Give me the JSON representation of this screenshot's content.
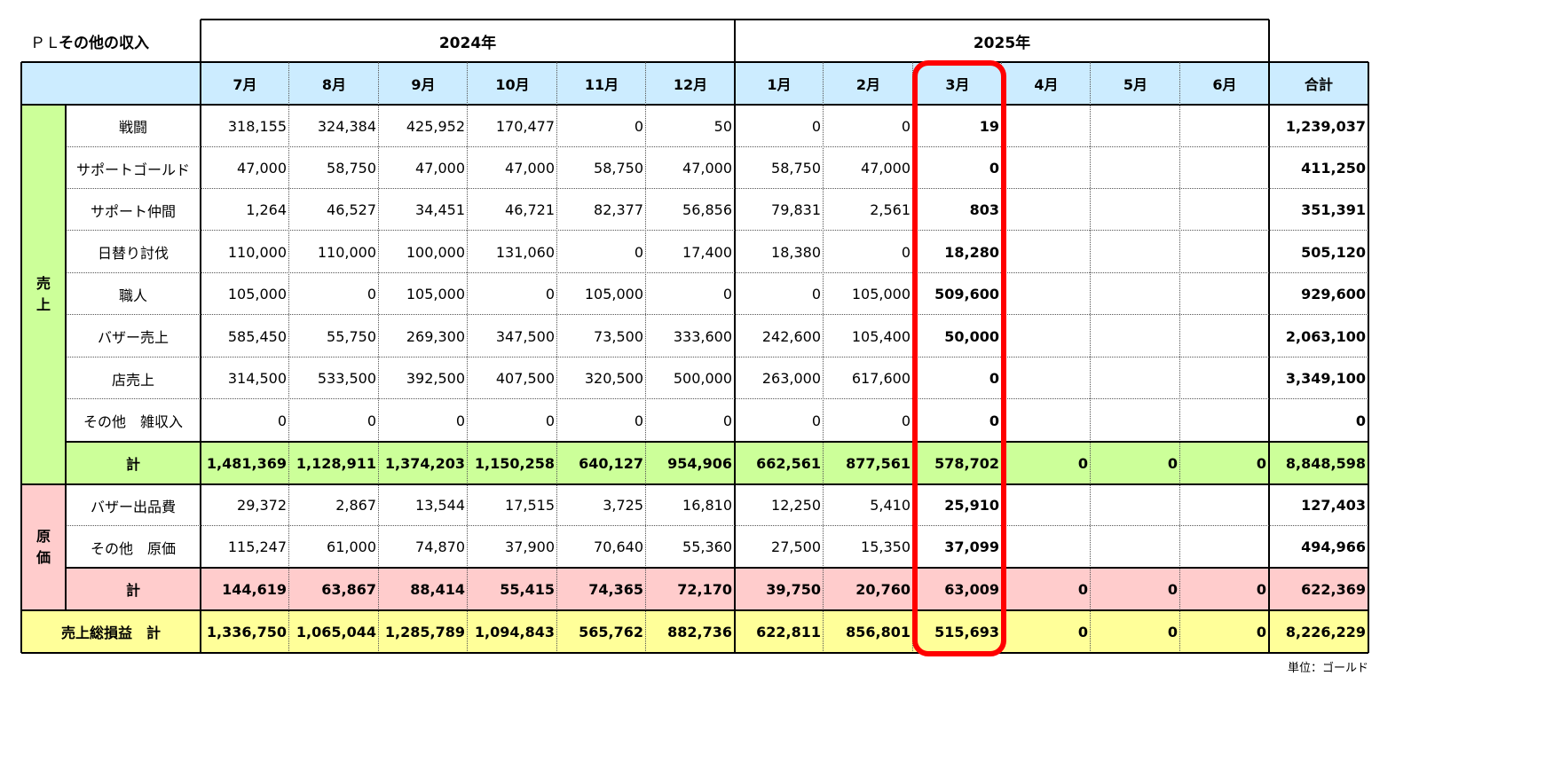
{
  "title": {
    "prefix": "ＰＬ",
    "label": "その他の収入"
  },
  "years": [
    "2024年",
    "2025年"
  ],
  "months": [
    "7月",
    "8月",
    "9月",
    "10月",
    "11月",
    "12月",
    "1月",
    "2月",
    "3月",
    "4月",
    "5月",
    "6月"
  ],
  "total_header": "合計",
  "sections": [
    {
      "label": "売\n上",
      "color": "#ccff99",
      "rows": [
        {
          "label": "戦闘",
          "values": [
            "318,155",
            "324,384",
            "425,952",
            "170,477",
            "0",
            "50",
            "0",
            "0",
            "19",
            "",
            "",
            ""
          ],
          "total": "1,239,037"
        },
        {
          "label": "サポートゴールド",
          "values": [
            "47,000",
            "58,750",
            "47,000",
            "47,000",
            "58,750",
            "47,000",
            "58,750",
            "47,000",
            "0",
            "",
            "",
            ""
          ],
          "total": "411,250"
        },
        {
          "label": "サポート仲間",
          "values": [
            "1,264",
            "46,527",
            "34,451",
            "46,721",
            "82,377",
            "56,856",
            "79,831",
            "2,561",
            "803",
            "",
            "",
            ""
          ],
          "total": "351,391"
        },
        {
          "label": "日替り討伐",
          "values": [
            "110,000",
            "110,000",
            "100,000",
            "131,060",
            "0",
            "17,400",
            "18,380",
            "0",
            "18,280",
            "",
            "",
            ""
          ],
          "total": "505,120"
        },
        {
          "label": "職人",
          "values": [
            "105,000",
            "0",
            "105,000",
            "0",
            "105,000",
            "0",
            "0",
            "105,000",
            "509,600",
            "",
            "",
            ""
          ],
          "total": "929,600"
        },
        {
          "label": "バザー売上",
          "values": [
            "585,450",
            "55,750",
            "269,300",
            "347,500",
            "73,500",
            "333,600",
            "242,600",
            "105,400",
            "50,000",
            "",
            "",
            ""
          ],
          "total": "2,063,100"
        },
        {
          "label": "店売上",
          "values": [
            "314,500",
            "533,500",
            "392,500",
            "407,500",
            "320,500",
            "500,000",
            "263,000",
            "617,600",
            "0",
            "",
            "",
            ""
          ],
          "total": "3,349,100"
        },
        {
          "label": "その他　雑収入",
          "values": [
            "0",
            "0",
            "0",
            "0",
            "0",
            "0",
            "0",
            "0",
            "0",
            "",
            "",
            ""
          ],
          "total": "0"
        }
      ],
      "subtotal": {
        "label": "計",
        "values": [
          "1,481,369",
          "1,128,911",
          "1,374,203",
          "1,150,258",
          "640,127",
          "954,906",
          "662,561",
          "877,561",
          "578,702",
          "0",
          "0",
          "0"
        ],
        "total": "8,848,598"
      }
    },
    {
      "label": "原\n価",
      "color": "#ffcccc",
      "rows": [
        {
          "label": "バザー出品費",
          "values": [
            "29,372",
            "2,867",
            "13,544",
            "17,515",
            "3,725",
            "16,810",
            "12,250",
            "5,410",
            "25,910",
            "",
            "",
            ""
          ],
          "total": "127,403"
        },
        {
          "label": "その他　原価",
          "values": [
            "115,247",
            "61,000",
            "74,870",
            "37,900",
            "70,640",
            "55,360",
            "27,500",
            "15,350",
            "37,099",
            "",
            "",
            ""
          ],
          "total": "494,966"
        }
      ],
      "subtotal": {
        "label": "計",
        "values": [
          "144,619",
          "63,867",
          "88,414",
          "55,415",
          "74,365",
          "72,170",
          "39,750",
          "20,760",
          "63,009",
          "0",
          "0",
          "0"
        ],
        "total": "622,369"
      }
    }
  ],
  "grand_total": {
    "label": "売上総損益　計",
    "color": "#ffff99",
    "values": [
      "1,336,750",
      "1,065,044",
      "1,285,789",
      "1,094,843",
      "565,762",
      "882,736",
      "622,811",
      "856,801",
      "515,693",
      "0",
      "0",
      "0"
    ],
    "total": "8,226,229"
  },
  "unit_note": "単位：ゴールド",
  "colors": {
    "header_bg": "#ccecff",
    "highlight_border": "#ff0000",
    "bold_column_index": 8
  }
}
